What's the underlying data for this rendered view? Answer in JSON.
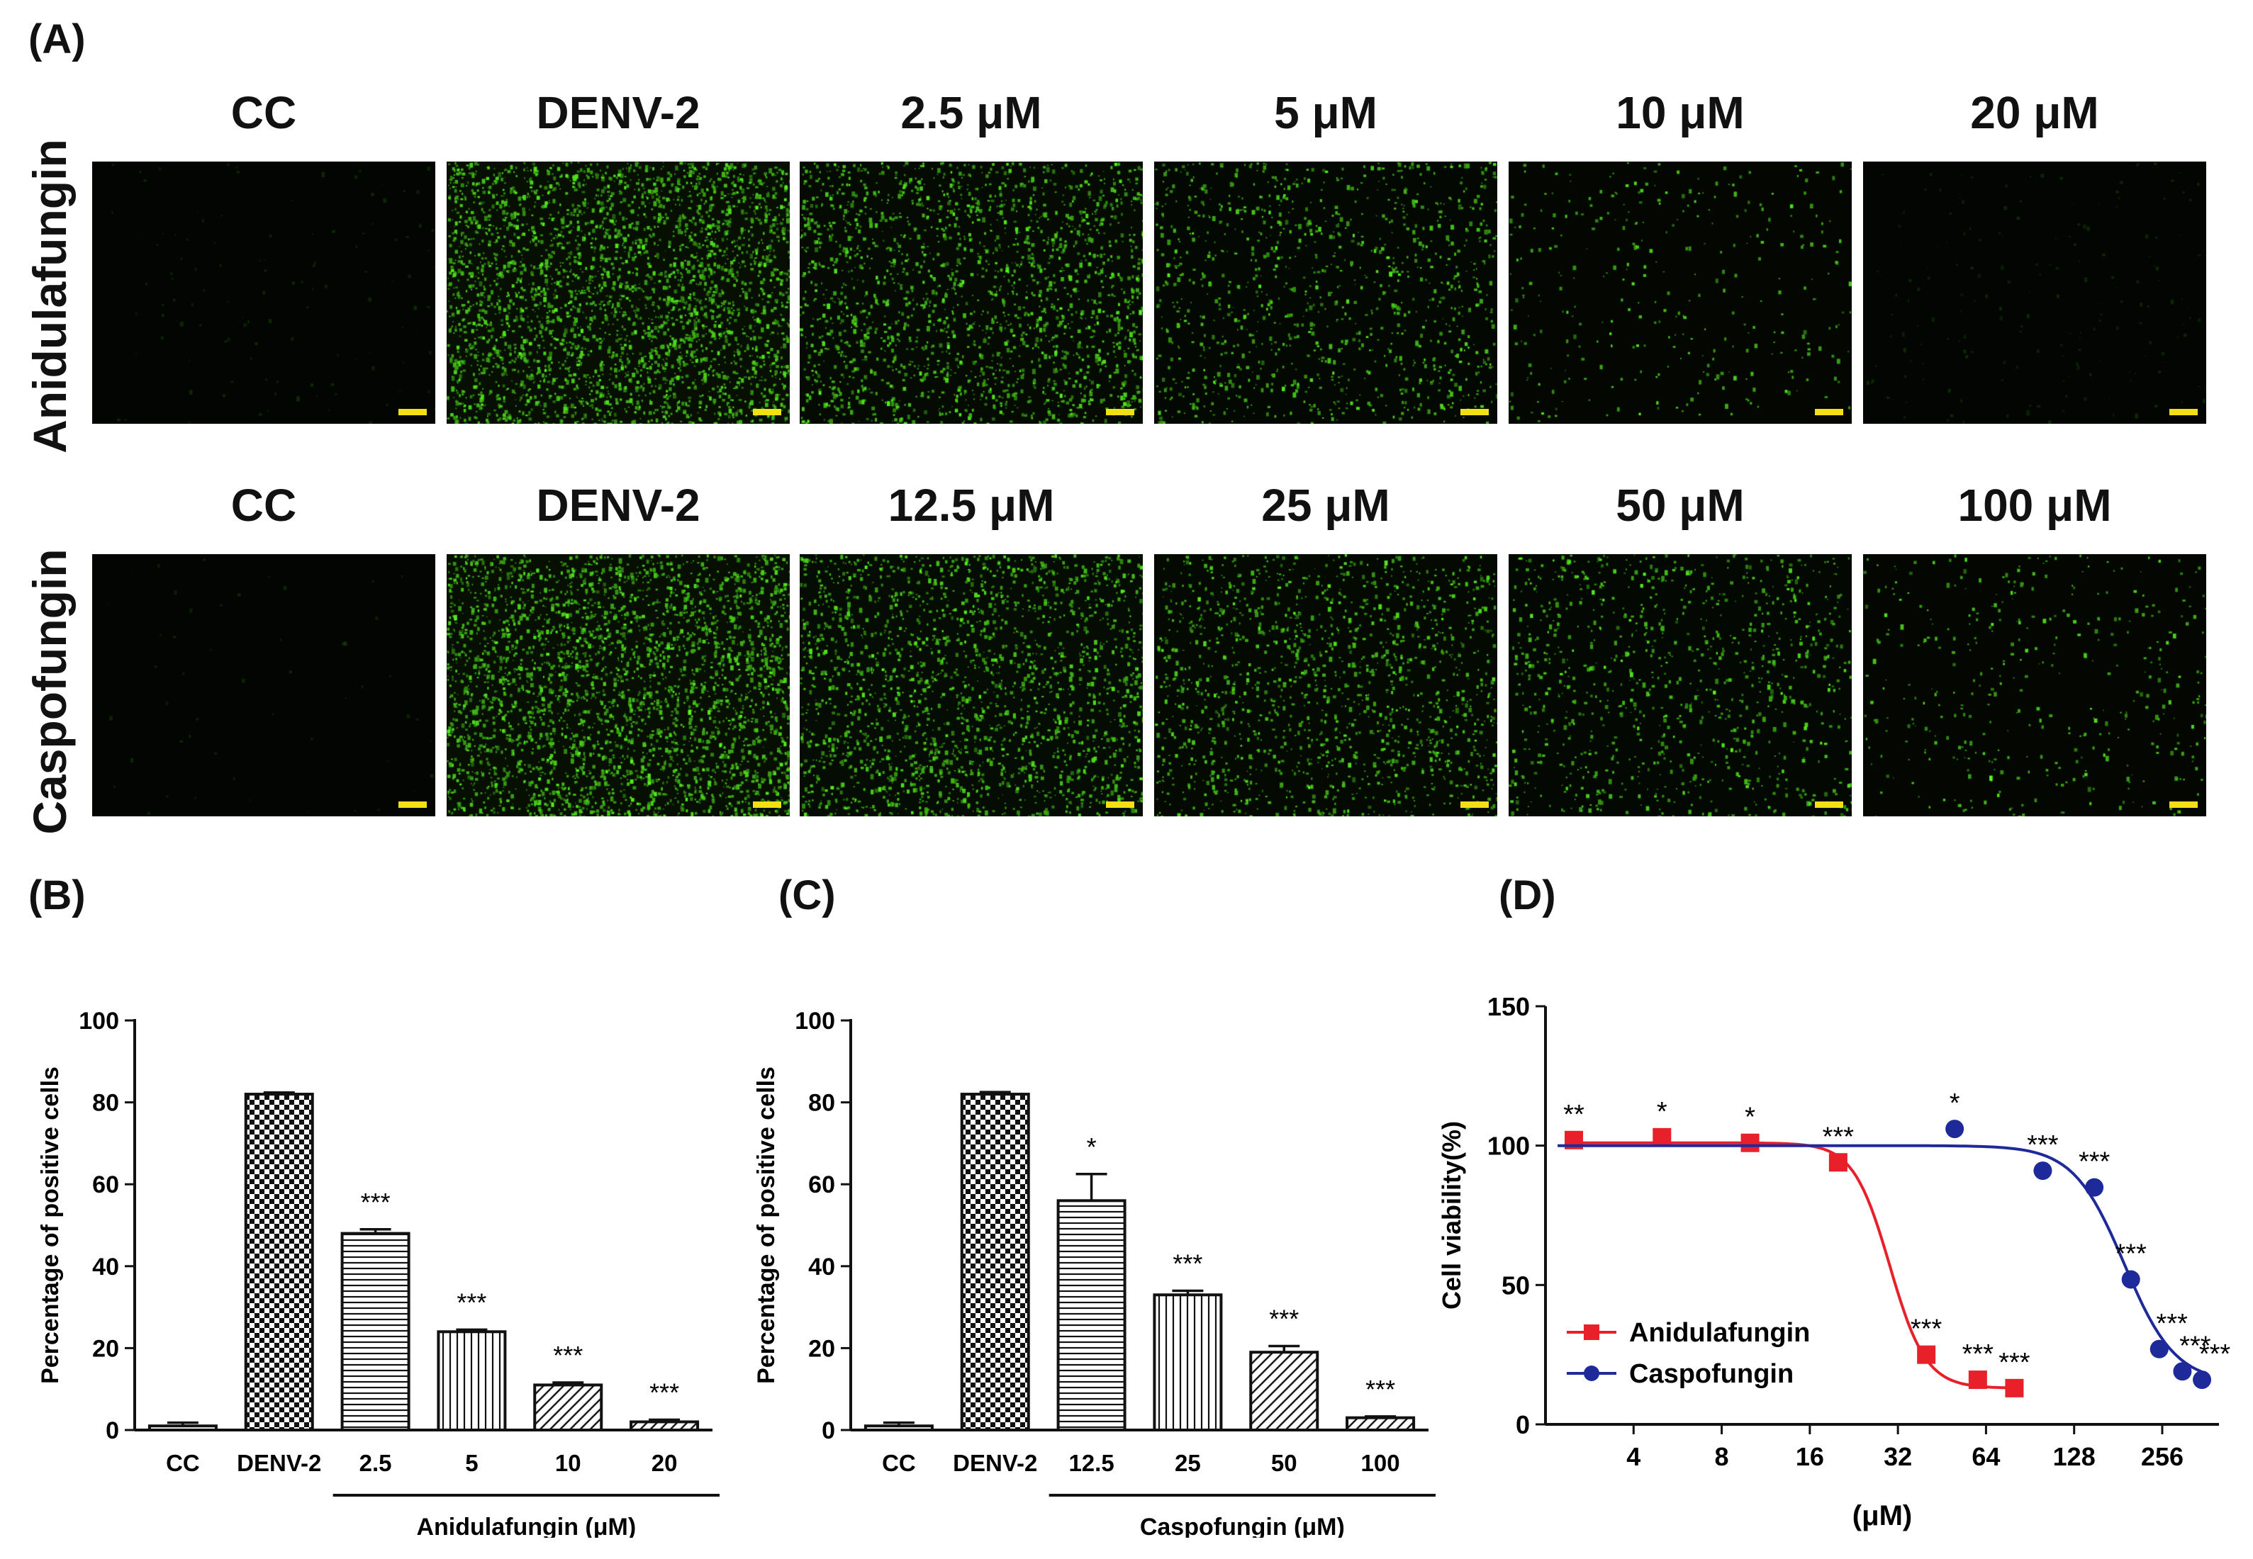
{
  "panel_labels": {
    "A": "(A)",
    "B": "(B)",
    "C": "(C)",
    "D": "(D)"
  },
  "microscopy": {
    "rows": [
      {
        "drug": "Anidulafungin",
        "columns": [
          "CC",
          "DENV-2",
          "2.5",
          "5",
          "10",
          "20"
        ],
        "unit": "μM",
        "intensity": [
          0.03,
          1.0,
          0.62,
          0.34,
          0.1,
          0.05
        ]
      },
      {
        "drug": "Caspofungin",
        "columns": [
          "CC",
          "DENV-2",
          "12.5",
          "25",
          "50",
          "100"
        ],
        "unit": "μM",
        "intensity": [
          0.01,
          1.0,
          0.66,
          0.46,
          0.3,
          0.12
        ]
      }
    ],
    "colors": {
      "fluorescence": "#3fd51a",
      "scale_bar": "#f2e012",
      "background": "#000000"
    }
  },
  "chart_data": [
    {
      "id": "B",
      "type": "bar",
      "ylabel": "Percentage of positive cells",
      "ylim": [
        0,
        100
      ],
      "yticks": [
        0,
        20,
        40,
        60,
        80,
        100
      ],
      "categories": [
        "CC",
        "DENV-2",
        "2.5",
        "5",
        "10",
        "20"
      ],
      "values": [
        1,
        82,
        48,
        24,
        11,
        2
      ],
      "errors": [
        0.8,
        0.4,
        1.0,
        0.5,
        0.6,
        0.5
      ],
      "patterns": [
        "none",
        "checker",
        "hlines",
        "vlines",
        "diag",
        "diag"
      ],
      "significance": [
        "",
        "",
        "***",
        "***",
        "***",
        "***"
      ],
      "group_label": "Anidulafungin (μM)"
    },
    {
      "id": "C",
      "type": "bar",
      "ylabel": "Percentage of positive cells",
      "ylim": [
        0,
        100
      ],
      "yticks": [
        0,
        20,
        40,
        60,
        80,
        100
      ],
      "categories": [
        "CC",
        "DENV-2",
        "12.5",
        "25",
        "50",
        "100"
      ],
      "values": [
        1,
        82,
        56,
        33,
        19,
        3
      ],
      "errors": [
        0.8,
        0.5,
        6.5,
        1.0,
        1.5,
        0.3
      ],
      "patterns": [
        "none",
        "checker",
        "hlines",
        "vlines",
        "diag",
        "diag"
      ],
      "significance": [
        "",
        "",
        "*",
        "***",
        "***",
        "***"
      ],
      "group_label": "Caspofungin (μM)"
    },
    {
      "id": "D",
      "type": "line",
      "ylabel": "Cell viability(%)",
      "xlabel": "(μM)",
      "x_scale": "log2",
      "xlim": [
        2,
        400
      ],
      "ylim": [
        0,
        150
      ],
      "xticks": [
        4,
        8,
        16,
        32,
        64,
        128,
        256
      ],
      "yticks": [
        0,
        50,
        100,
        150
      ],
      "legend_position": "bottom-left",
      "series": [
        {
          "name": "Anidulafungin",
          "color": "#e8202a",
          "marker": "square",
          "x": [
            2.5,
            5,
            10,
            20,
            40,
            60,
            80
          ],
          "y": [
            102,
            103,
            101,
            94,
            25,
            16,
            13
          ],
          "labels": [
            "**",
            "*",
            "*",
            "***",
            "***",
            "***",
            "***"
          ],
          "fit": {
            "top": 101,
            "bottom": 13,
            "ec50": 30,
            "hill": 7
          }
        },
        {
          "name": "Caspofungin",
          "color": "#1f2a9a",
          "marker": "circle",
          "x": [
            50,
            100,
            150,
            200,
            250,
            300,
            350
          ],
          "y": [
            106,
            91,
            85,
            52,
            27,
            19,
            16
          ],
          "labels": [
            "*",
            "***",
            "***",
            "***",
            "***",
            "***",
            "***"
          ],
          "fit": {
            "top": 100,
            "bottom": 15,
            "ec50": 190,
            "hill": 5
          }
        }
      ]
    }
  ]
}
